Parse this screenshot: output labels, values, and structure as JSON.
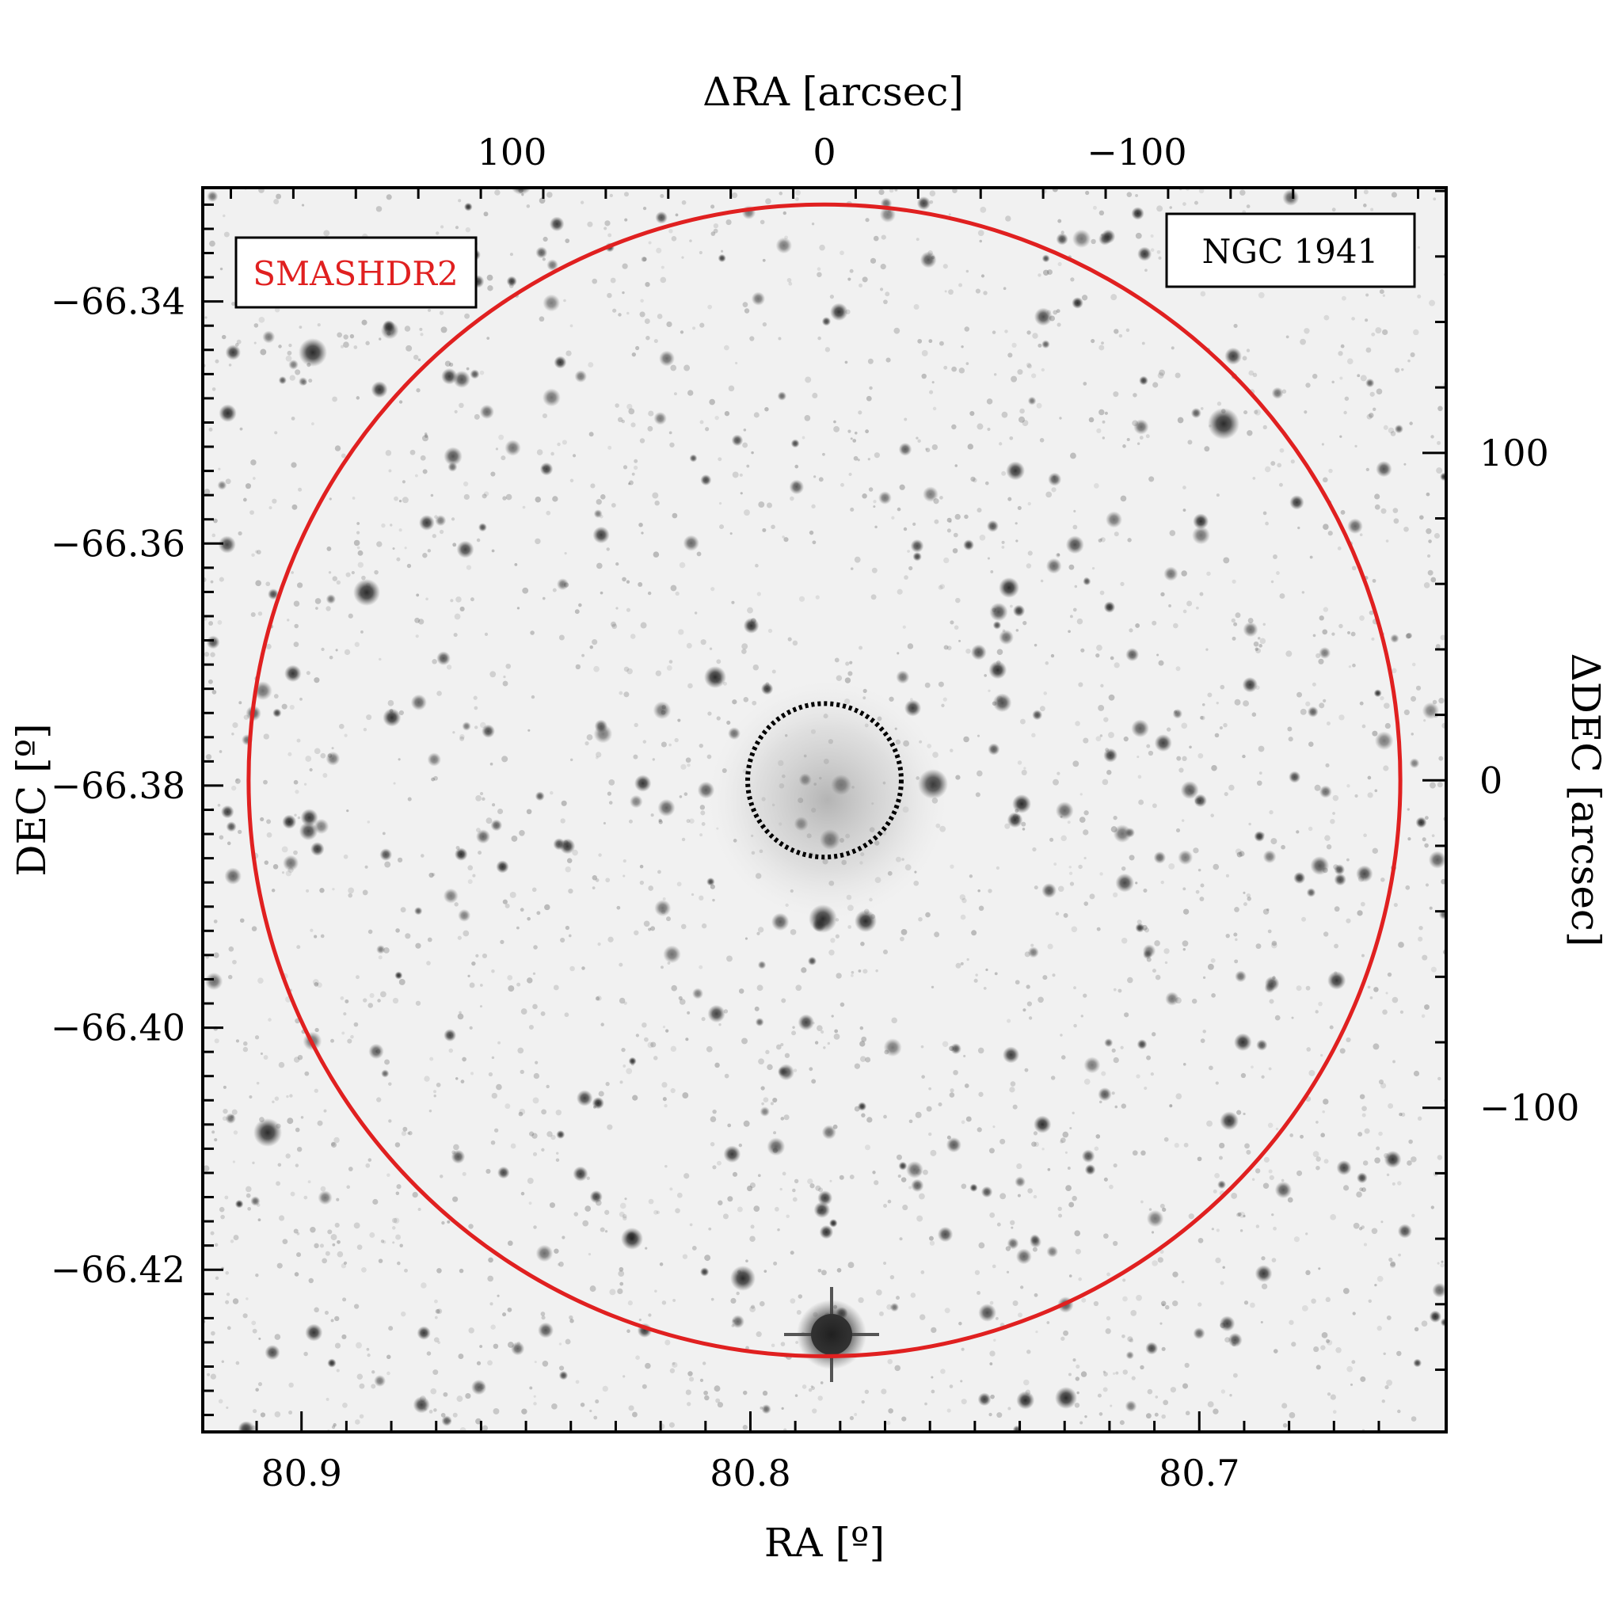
{
  "chart_data": {
    "type": "scatter",
    "title": "",
    "image_badges": {
      "survey": "SMASHDR2",
      "object": "NGC 1941"
    },
    "colors": {
      "survey_badge": "#e02020",
      "outer_circle": "#e02020",
      "inner_circle": "#000000",
      "frame": "#000000"
    },
    "axes": {
      "bottom": {
        "label": "RA [º]",
        "ticks": [
          "80.9",
          "80.8",
          "80.7"
        ],
        "tick_values": [
          80.9,
          80.8,
          80.7
        ],
        "range": [
          80.922,
          80.645
        ],
        "direction": "decreasing"
      },
      "left": {
        "label": "DEC [º]",
        "ticks": [
          "−66.34",
          "−66.36",
          "−66.38",
          "−66.40",
          "−66.42"
        ],
        "tick_values": [
          -66.34,
          -66.36,
          -66.38,
          -66.4,
          -66.42
        ],
        "range": [
          -66.3306,
          -66.4334
        ]
      },
      "top": {
        "label": "ΔRA [arcsec]",
        "ticks": [
          "100",
          "0",
          "−100"
        ],
        "tick_values": [
          100,
          0,
          -100
        ],
        "range": [
          199,
          -199
        ]
      },
      "right": {
        "label": "ΔDEC [arcsec]",
        "ticks": [
          "100",
          "0",
          "−100"
        ],
        "tick_values": [
          100,
          0,
          -100
        ],
        "range": [
          181,
          -199
        ]
      }
    },
    "annotations": {
      "outer_circle": {
        "center_arcsec": [
          0,
          0
        ],
        "radius_arcsec": 180,
        "style": "solid"
      },
      "inner_circle": {
        "center_arcsec": [
          0,
          0
        ],
        "radius_arcsec": 24,
        "style": "dotted"
      }
    }
  }
}
